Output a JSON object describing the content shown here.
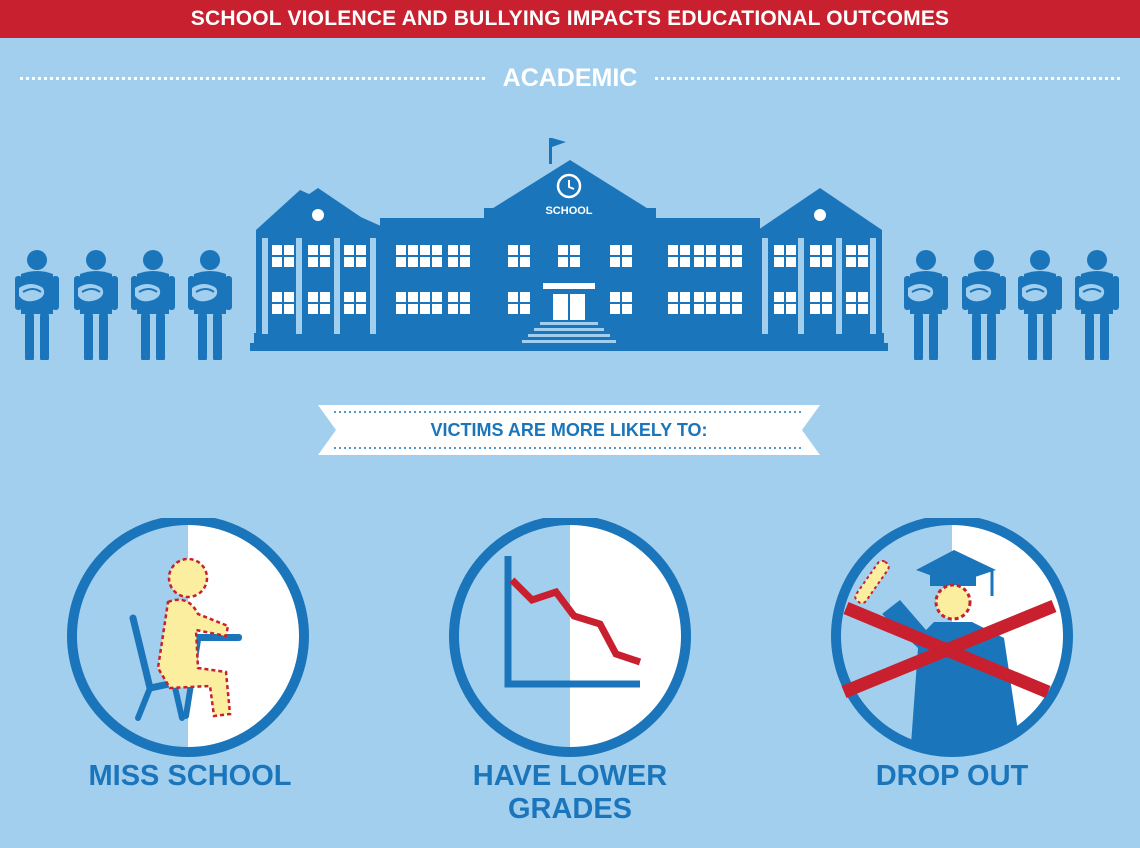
{
  "banner": {
    "title": "SCHOOL VIOLENCE AND BULLYING IMPACTS EDUCATIONAL OUTCOMES"
  },
  "section": {
    "label": "ACADEMIC"
  },
  "school": {
    "sign": "SCHOOL"
  },
  "ribbon": {
    "text": "VICTIMS ARE MORE LIKELY TO:"
  },
  "outcomes": [
    {
      "label": "MISS SCHOOL",
      "icon": "student-at-desk-icon"
    },
    {
      "label": "HAVE LOWER GRADES",
      "icon": "declining-chart-icon"
    },
    {
      "label": "DROP OUT",
      "icon": "crossed-graduate-icon"
    }
  ],
  "colors": {
    "background": "#a3cfee",
    "banner": "#c8202f",
    "primary_blue": "#1b75bb",
    "highlight_red": "#c8202f",
    "figure_yellow": "#fbef9f"
  }
}
